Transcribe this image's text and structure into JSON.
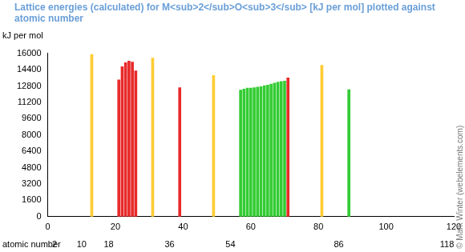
{
  "chart_data": {
    "type": "bar",
    "title": "Lattice energies (calculated) for M<sub>2</sub>O<sub>3</sub> [kJ per mol] plotted against atomic number",
    "y_label": "kJ per mol",
    "x_label": "atomic number",
    "credit": "© Mark Winter (webelements.com)",
    "x": [
      13,
      21,
      22,
      23,
      24,
      25,
      26,
      31,
      39,
      49,
      57,
      58,
      59,
      60,
      61,
      62,
      63,
      64,
      65,
      66,
      67,
      68,
      69,
      70,
      71,
      81,
      89
    ],
    "values": [
      15900,
      13400,
      14700,
      15100,
      15250,
      15150,
      14300,
      15550,
      12650,
      13850,
      12400,
      12500,
      12600,
      12600,
      12650,
      12700,
      12750,
      12850,
      12900,
      13000,
      13100,
      13200,
      13250,
      13300,
      13600,
      14850,
      12450
    ],
    "colors": [
      "#ffcc33",
      "#e82a2a",
      "#e82a2a",
      "#e82a2a",
      "#e82a2a",
      "#e82a2a",
      "#e82a2a",
      "#ffcc33",
      "#e82a2a",
      "#ffcc33",
      "#33cc33",
      "#33cc33",
      "#33cc33",
      "#33cc33",
      "#33cc33",
      "#33cc33",
      "#33cc33",
      "#33cc33",
      "#33cc33",
      "#33cc33",
      "#33cc33",
      "#33cc33",
      "#33cc33",
      "#33cc33",
      "#e82a2a",
      "#ffcc33",
      "#33cc33"
    ],
    "xlim": [
      0,
      120
    ],
    "xticks": [
      0,
      20,
      40,
      60,
      80,
      100,
      120
    ],
    "noble_gas_ticks": [
      2,
      10,
      18,
      36,
      54,
      86,
      118
    ],
    "ylim": [
      0,
      16000
    ],
    "yticks": [
      0,
      1600,
      3200,
      4800,
      6400,
      8000,
      9600,
      11200,
      12800,
      14400,
      16000
    ],
    "grid": false
  }
}
